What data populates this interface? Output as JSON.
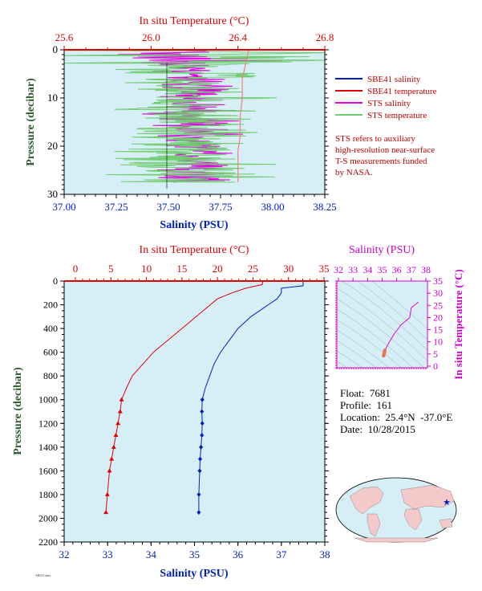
{
  "colors": {
    "plot_bg": "#d6eff6",
    "temperature": "#e00000",
    "salinity": "#0020c0",
    "sts_salinity": "#e000e0",
    "sts_temperature": "#70cc70",
    "depth_axis": "#2a5a2a",
    "magenta_axis": "#cc00cc"
  },
  "top_panel": {
    "temp_axis_title": "In situ Temperature (°C)",
    "sal_axis_title": "Salinity (PSU)",
    "pres_axis_title": "Pressure (decibar)",
    "temp_ticks": [
      "25.6",
      "26.0",
      "26.4",
      "26.8"
    ],
    "sal_ticks": [
      "37.00",
      "37.25",
      "37.50",
      "37.75",
      "38.00",
      "38.25"
    ],
    "pres_ticks": [
      "0",
      "10",
      "20",
      "30"
    ],
    "legend": [
      {
        "label": "SBE41 salinity",
        "color": "#0020c0"
      },
      {
        "label": "SBE41 temperature",
        "color": "#e00000"
      },
      {
        "label": "STS salinity",
        "color": "#e000e0"
      },
      {
        "label": "STS temperature",
        "color": "#70cc70"
      }
    ],
    "note": [
      "STS refers to auxiliary",
      "high-resolution near-surface",
      "T-S measurements funded",
      "by NASA."
    ]
  },
  "bottom_panel": {
    "temp_axis_title": "In situ Temperature (°C)",
    "sal_axis_title": "Salinity (PSU)",
    "pres_axis_title": "Pressure (decibar)",
    "temp_ticks": [
      "0",
      "5",
      "10",
      "15",
      "20",
      "25",
      "30",
      "35"
    ],
    "sal_ticks": [
      "32",
      "33",
      "34",
      "35",
      "36",
      "37",
      "38"
    ],
    "pres_ticks": [
      "0",
      "200",
      "400",
      "600",
      "800",
      "1000",
      "1200",
      "1400",
      "1600",
      "1800",
      "2000",
      "2200"
    ]
  },
  "ts_panel": {
    "sal_axis_title": "Salinity (PSU)",
    "temp_axis_title": "In situ Temperature (°C)",
    "sal_ticks": [
      "32",
      "33",
      "34",
      "35",
      "36",
      "37",
      "38"
    ],
    "temp_ticks": [
      "35",
      "30",
      "25",
      "20",
      "15",
      "10",
      "5",
      "0"
    ]
  },
  "info": {
    "float": "Float:  7681",
    "profile": "Profile:  161",
    "location": "Location:  25.4°N  -37.0°E",
    "date": "Date:  10/28/2015"
  },
  "chart_data": [
    {
      "type": "line",
      "title": "",
      "xlabel": "Salinity (PSU)",
      "x2label": "In situ Temperature (°C)",
      "ylabel": "Pressure (decibar)",
      "xlim": [
        37.0,
        38.25
      ],
      "x2lim": [
        25.6,
        26.8
      ],
      "ylim": [
        30,
        0
      ],
      "series": [
        {
          "name": "SBE41 temperature",
          "axis": "temperature",
          "x": [
            26.45,
            26.44,
            26.43,
            26.42,
            26.42,
            26.41,
            26.41,
            26.4,
            26.4,
            26.4,
            26.4
          ],
          "y": [
            0,
            2,
            4,
            6,
            10,
            14,
            18,
            21,
            24,
            26,
            27.5
          ]
        },
        {
          "name": "STS salinity",
          "axis": "salinity",
          "x_center": 37.62,
          "spread": 0.18,
          "y_range": [
            0,
            27.5
          ]
        },
        {
          "name": "STS temperature",
          "axis": "temperature",
          "x_center": 26.2,
          "spread": 0.35,
          "y_range": [
            0,
            27.5
          ]
        }
      ]
    },
    {
      "type": "line",
      "title": "",
      "xlabel": "Salinity (PSU)",
      "x2label": "In situ Temperature (°C)",
      "ylabel": "Pressure (decibar)",
      "xlim": [
        32,
        38
      ],
      "x2lim": [
        0,
        35
      ],
      "ylim": [
        2200,
        0
      ],
      "series": [
        {
          "name": "SBE41 temperature",
          "axis": "temperature",
          "x": [
            26.4,
            26.3,
            24.0,
            22.0,
            20.0,
            19.0,
            17.0,
            15.0,
            13.0,
            11.0,
            9.5,
            8.0,
            7.2,
            6.5,
            6.3,
            6.0,
            5.7,
            5.4,
            5.1,
            4.8,
            4.5,
            4.3
          ],
          "y": [
            0,
            30,
            60,
            100,
            150,
            200,
            300,
            400,
            500,
            600,
            700,
            800,
            900,
            1000,
            1100,
            1200,
            1300,
            1400,
            1500,
            1600,
            1800,
            1950
          ],
          "markers_from_y": 1000,
          "marker": "triangle"
        },
        {
          "name": "SBE41 salinity",
          "axis": "salinity",
          "x": [
            37.5,
            37.5,
            37.0,
            37.0,
            36.9,
            36.7,
            36.3,
            36.0,
            35.8,
            35.6,
            35.45,
            35.35,
            35.25,
            35.18,
            35.17,
            35.18,
            35.17,
            35.15,
            35.13,
            35.12,
            35.1,
            35.1
          ],
          "y": [
            0,
            40,
            60,
            100,
            150,
            200,
            300,
            400,
            500,
            600,
            700,
            800,
            900,
            1000,
            1100,
            1200,
            1300,
            1400,
            1500,
            1600,
            1800,
            1950
          ],
          "markers_from_y": 1000,
          "marker": "diamond"
        }
      ]
    },
    {
      "type": "scatter",
      "title": "",
      "xlabel": "Salinity (PSU)",
      "ylabel": "In situ Temperature (°C)",
      "xlim": [
        32,
        38
      ],
      "ylim": [
        0,
        35
      ],
      "series": [
        {
          "name": "T-S",
          "x": [
            37.5,
            37.0,
            36.9,
            36.3,
            35.8,
            35.6,
            35.45,
            35.25,
            35.18,
            35.17,
            35.15,
            35.12,
            35.1
          ],
          "y": [
            26.4,
            24.0,
            20.0,
            17.0,
            13.0,
            11.0,
            9.5,
            7.2,
            6.5,
            6.0,
            5.4,
            4.8,
            4.3
          ]
        }
      ]
    }
  ]
}
